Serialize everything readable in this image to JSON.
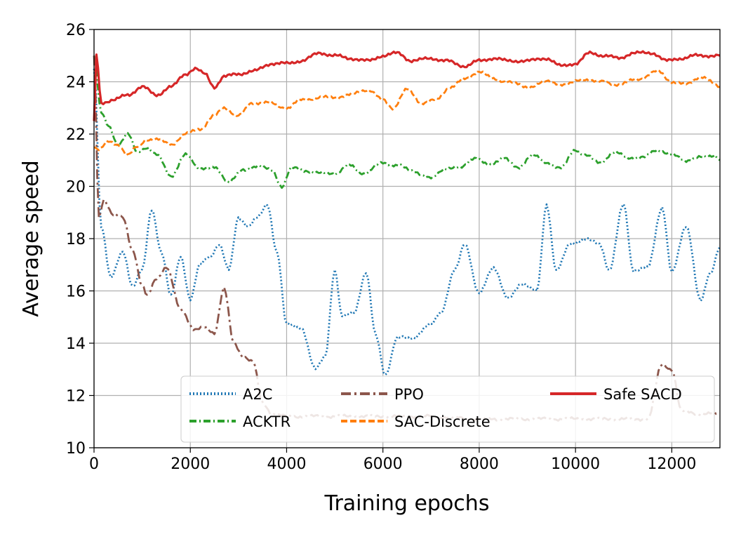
{
  "chart_data": {
    "type": "line",
    "title": "",
    "xlabel": "Training epochs",
    "ylabel": "Average speed",
    "xlim": [
      0,
      13000
    ],
    "ylim": [
      10,
      26
    ],
    "xticks": [
      0,
      2000,
      4000,
      6000,
      8000,
      10000,
      12000
    ],
    "xtick_labels": [
      "0",
      "2000",
      "4000",
      "6000",
      "8000",
      "10000",
      "12000"
    ],
    "yticks": [
      10,
      12,
      14,
      16,
      18,
      20,
      22,
      24,
      26
    ],
    "ytick_labels": [
      "10",
      "12",
      "14",
      "16",
      "18",
      "20",
      "22",
      "24",
      "26"
    ],
    "grid": true,
    "legend": {
      "position": "lower-right",
      "columns": 3
    },
    "series": [
      {
        "name": "A2C",
        "color": "#1f77b4",
        "style": "dotted",
        "x": [
          0,
          150,
          350,
          600,
          800,
          1000,
          1200,
          1400,
          1600,
          1800,
          2000,
          2200,
          2400,
          2600,
          2800,
          3000,
          3200,
          3400,
          3600,
          3800,
          4000,
          4300,
          4600,
          4800,
          5000,
          5150,
          5400,
          5650,
          5850,
          6050,
          6300,
          6600,
          7000,
          7200,
          7500,
          7700,
          8000,
          8300,
          8600,
          8900,
          9200,
          9400,
          9600,
          9900,
          10200,
          10500,
          10700,
          11000,
          11200,
          11500,
          11800,
          12000,
          12300,
          12600,
          12800,
          13000
        ],
        "y": [
          24.5,
          18.5,
          16.5,
          17.5,
          16.2,
          16.8,
          19.1,
          17.5,
          15.8,
          17.3,
          15.7,
          17.0,
          17.3,
          17.8,
          16.8,
          18.8,
          18.5,
          18.8,
          19.3,
          17.5,
          14.7,
          14.6,
          13.0,
          13.5,
          16.8,
          15.0,
          15.2,
          16.7,
          14.3,
          12.8,
          14.2,
          14.2,
          14.7,
          15.2,
          16.8,
          17.8,
          15.9,
          16.9,
          15.7,
          16.3,
          16.0,
          19.3,
          16.8,
          17.8,
          18.0,
          17.8,
          16.8,
          19.3,
          16.8,
          16.9,
          19.2,
          16.7,
          18.5,
          15.6,
          16.7,
          17.7
        ]
      },
      {
        "name": "ACKTR",
        "color": "#2ca02c",
        "style": "dash-dot",
        "x": [
          0,
          150,
          300,
          500,
          700,
          900,
          1100,
          1300,
          1600,
          1900,
          2200,
          2500,
          2800,
          3100,
          3400,
          3700,
          3900,
          4100,
          4400,
          4700,
          5000,
          5300,
          5600,
          6000,
          6300,
          6600,
          7000,
          7300,
          7600,
          7900,
          8200,
          8500,
          8800,
          9100,
          9400,
          9700,
          10000,
          10200,
          10500,
          10800,
          11100,
          11400,
          11700,
          12000,
          12300,
          12600,
          12900,
          13000
        ],
        "y": [
          25.0,
          22.8,
          22.3,
          21.6,
          22.0,
          21.3,
          21.5,
          21.2,
          20.4,
          21.2,
          20.7,
          20.7,
          20.2,
          20.6,
          20.8,
          20.6,
          20.0,
          20.7,
          20.6,
          20.5,
          20.5,
          20.8,
          20.5,
          20.9,
          20.8,
          20.6,
          20.3,
          20.7,
          20.7,
          21.1,
          20.8,
          21.1,
          20.7,
          21.2,
          20.9,
          20.7,
          21.4,
          21.2,
          20.9,
          21.3,
          21.1,
          21.1,
          21.4,
          21.2,
          21.0,
          21.1,
          21.2,
          21.0
        ]
      },
      {
        "name": "PPO",
        "color": "#8c564b",
        "style": "dash-dot-long",
        "x": [
          0,
          100,
          200,
          400,
          600,
          800,
          1000,
          1100,
          1300,
          1500,
          1800,
          2100,
          2300,
          2500,
          2700,
          2900,
          3100,
          3300,
          3500,
          3700,
          4000,
          5000,
          6000,
          7000,
          8000,
          9000,
          10000,
          11000,
          11500,
          11800,
          12000,
          12200,
          12600,
          13000
        ],
        "y": [
          25.0,
          18.8,
          19.5,
          18.9,
          18.8,
          17.6,
          16.2,
          15.8,
          16.5,
          16.9,
          15.3,
          14.5,
          14.6,
          14.4,
          16.1,
          14.0,
          13.5,
          13.3,
          11.7,
          11.3,
          11.2,
          11.2,
          11.2,
          11.2,
          11.1,
          11.1,
          11.1,
          11.1,
          11.1,
          13.2,
          13.0,
          11.4,
          11.3,
          11.3
        ]
      },
      {
        "name": "SAC-Discrete",
        "color": "#ff7f0e",
        "style": "dashed",
        "x": [
          0,
          100,
          300,
          500,
          700,
          900,
          1100,
          1300,
          1600,
          1900,
          2200,
          2500,
          2700,
          3000,
          3300,
          3600,
          4000,
          4300,
          4700,
          5000,
          5300,
          5700,
          6000,
          6200,
          6500,
          6800,
          7100,
          7400,
          7700,
          8000,
          8300,
          8600,
          9000,
          9400,
          9800,
          10200,
          10500,
          10900,
          11300,
          11700,
          12000,
          12300,
          12600,
          13000
        ],
        "y": [
          21.5,
          21.4,
          21.7,
          21.6,
          21.2,
          21.5,
          21.8,
          21.8,
          21.6,
          22.0,
          22.2,
          22.7,
          23.0,
          22.7,
          23.2,
          23.2,
          23.0,
          23.3,
          23.4,
          23.4,
          23.5,
          23.7,
          23.3,
          23.0,
          23.7,
          23.2,
          23.3,
          23.8,
          24.1,
          24.4,
          24.1,
          24.0,
          23.8,
          24.0,
          23.9,
          24.1,
          24.0,
          23.9,
          24.1,
          24.4,
          24.0,
          23.9,
          24.2,
          23.8
        ]
      },
      {
        "name": "Safe SACD",
        "color": "#d62728",
        "style": "solid",
        "x": [
          0,
          50,
          150,
          400,
          700,
          1000,
          1300,
          1600,
          1900,
          2100,
          2300,
          2500,
          2700,
          3000,
          3300,
          3700,
          4000,
          4300,
          4700,
          5000,
          5300,
          5700,
          6000,
          6300,
          6600,
          7000,
          7300,
          7700,
          8000,
          8300,
          8600,
          9000,
          9400,
          9700,
          10000,
          10300,
          10600,
          10900,
          11200,
          11600,
          11900,
          12200,
          12500,
          12800,
          13000
        ],
        "y": [
          22.5,
          25.0,
          23.2,
          23.3,
          23.5,
          23.8,
          23.5,
          23.8,
          24.3,
          24.5,
          24.3,
          23.8,
          24.2,
          24.3,
          24.4,
          24.7,
          24.7,
          24.8,
          25.1,
          25.0,
          24.9,
          24.8,
          25.0,
          25.1,
          24.8,
          24.9,
          24.8,
          24.6,
          24.8,
          24.9,
          24.8,
          24.8,
          24.9,
          24.6,
          24.7,
          25.1,
          25.0,
          24.9,
          25.1,
          25.1,
          24.8,
          24.9,
          25.0,
          25.0,
          25.0
        ]
      }
    ]
  }
}
